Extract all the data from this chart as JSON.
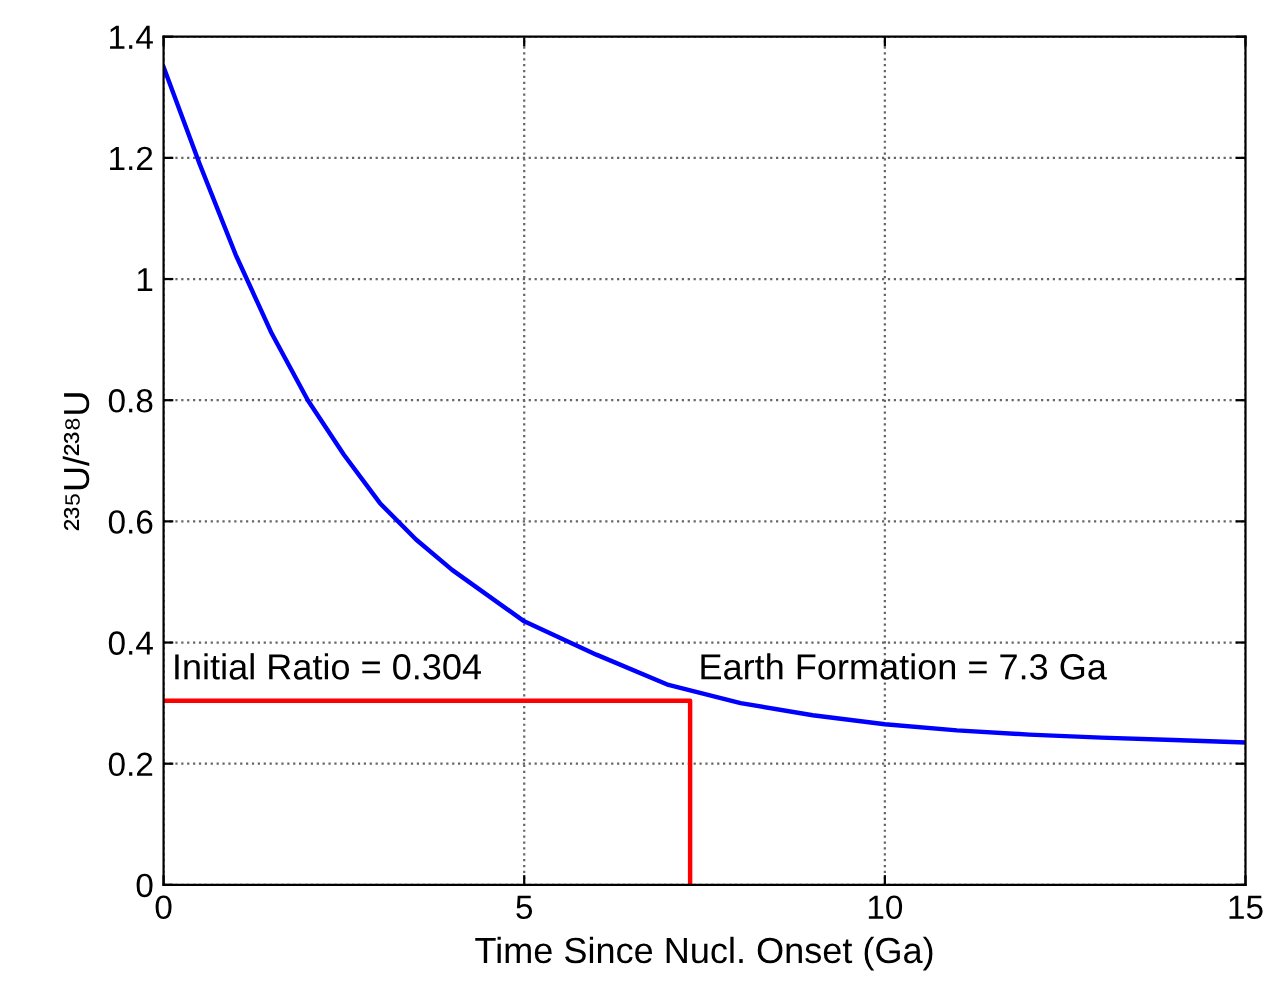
{
  "chart_data": {
    "type": "line",
    "xlabel": "Time Since Nucl. Onset (Ga)",
    "ylabel": "²³⁵U/²³⁸U",
    "xlim": [
      0,
      15
    ],
    "ylim": [
      0,
      1.4
    ],
    "xticks": [
      0,
      5,
      10,
      15
    ],
    "yticks": [
      0,
      0.2,
      0.4,
      0.6,
      0.8,
      1,
      1.2,
      1.4
    ],
    "grid": true,
    "line_style": "solid",
    "series": [
      {
        "color": "#0000ff",
        "x": [
          0,
          0.5,
          1,
          1.5,
          2,
          2.5,
          3,
          3.5,
          4,
          5,
          6,
          7,
          8,
          9,
          10,
          11,
          12,
          13,
          14,
          15
        ],
        "values": [
          1.35,
          1.19,
          1.04,
          0.91,
          0.8,
          0.71,
          0.63,
          0.57,
          0.52,
          0.435,
          0.38,
          0.33,
          0.3,
          0.28,
          0.265,
          0.255,
          0.248,
          0.243,
          0.239,
          0.235
        ]
      },
      {
        "color": "#ff0000",
        "x": [
          0,
          7.3,
          7.3
        ],
        "values": [
          0.304,
          0.304,
          0
        ]
      }
    ],
    "annotations": [
      {
        "text": "Initial Ratio = 0.304",
        "x": 0,
        "y": 0.304
      },
      {
        "text": "Earth Formation = 7.3 Ga",
        "x": 7.3,
        "y": 0.304
      }
    ]
  }
}
